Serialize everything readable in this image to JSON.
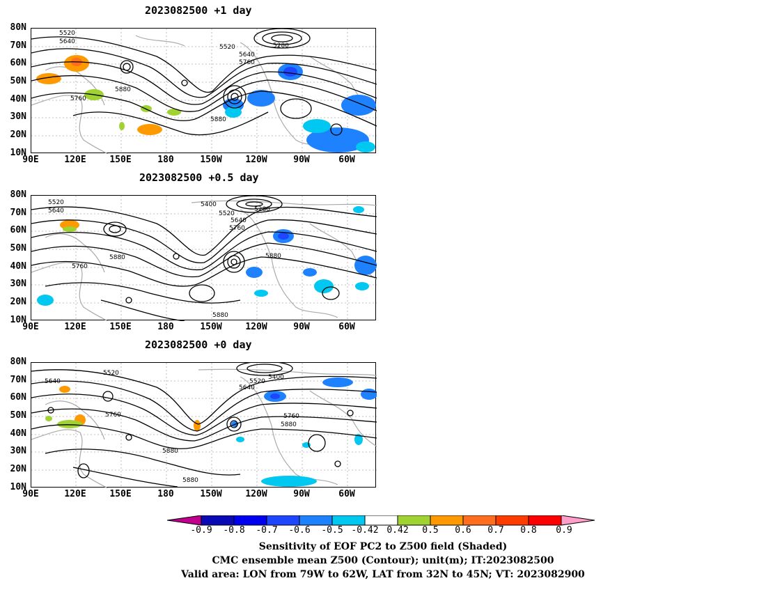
{
  "panels": [
    {
      "title": "2023082500  +1 day"
    },
    {
      "title": "2023082500  +0.5 day"
    },
    {
      "title": "2023082500  +0 day"
    }
  ],
  "lat_ticks": [
    "80N",
    "70N",
    "60N",
    "50N",
    "40N",
    "30N",
    "20N",
    "10N"
  ],
  "lon_ticks": [
    "90E",
    "120E",
    "150E",
    "180",
    "150W",
    "120W",
    "90W",
    "60W"
  ],
  "contour_labels": {
    "p1": [
      "5520",
      "5640",
      "5520",
      "5280",
      "5640",
      "5760",
      "5880",
      "5760",
      "5880"
    ],
    "p2": [
      "5520",
      "5640",
      "5400",
      "5280",
      "5520",
      "5640",
      "5760",
      "5880",
      "5760",
      "5880",
      "5880"
    ],
    "p3": [
      "5520",
      "5640",
      "5400",
      "5520",
      "5640",
      "5760",
      "5880",
      "5760",
      "5880",
      "5880"
    ]
  },
  "colorbar": {
    "labels": [
      "-0.9",
      "-0.8",
      "-0.7",
      "-0.6",
      "-0.5",
      "-0.42",
      "0.42",
      "0.5",
      "0.6",
      "0.7",
      "0.8",
      "0.9"
    ],
    "colors": [
      "#c0008c",
      "#0a0ab4",
      "#0000f0",
      "#1e46ff",
      "#1e82ff",
      "#00c8f0",
      "#ffffff",
      "#a0d232",
      "#ff9900",
      "#ff6e1e",
      "#ff3c00",
      "#ff0000",
      "#ff9ec8"
    ]
  },
  "caption": {
    "line1": "Sensitivity of EOF PC2 to Z500 field (Shaded)",
    "line2": "CMC ensemble mean Z500 (Contour); unit(m); IT:2023082500",
    "line3": "Valid area: LON from 79W to 62W, LAT from 32N to 45N; VT: 2023082900"
  }
}
